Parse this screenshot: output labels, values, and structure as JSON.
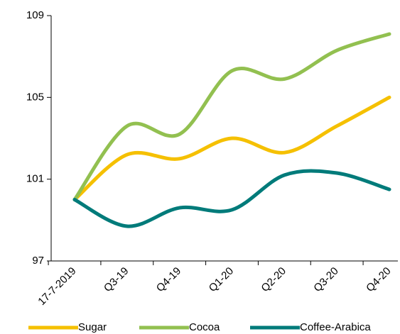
{
  "chart_data": {
    "type": "line",
    "categories": [
      "17-7-2019",
      "Q3-19",
      "Q4-19",
      "Q1-20",
      "Q2-20",
      "Q3-20",
      "Q4-20"
    ],
    "series": [
      {
        "name": "Sugar",
        "color": "#f5c000",
        "values": [
          100,
          102.2,
          102.0,
          103.0,
          102.3,
          103.6,
          105
        ]
      },
      {
        "name": "Cocoa",
        "color": "#92c050",
        "values": [
          100,
          103.6,
          103.2,
          106.3,
          105.9,
          107.3,
          108.1
        ]
      },
      {
        "name": "Coffee-Arabica",
        "color": "#007b7a",
        "values": [
          100,
          98.7,
          99.6,
          99.5,
          101.2,
          101.3,
          100.5
        ]
      }
    ],
    "ylim": [
      97,
      109
    ],
    "yticks": [
      97,
      101,
      105,
      109
    ],
    "legend": "bottom"
  }
}
